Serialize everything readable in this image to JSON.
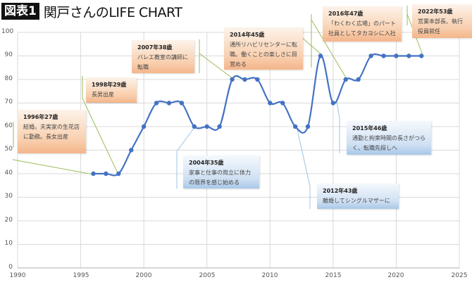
{
  "header": {
    "badge": "図表1",
    "title": "関戸さんのLIFE CHART"
  },
  "colors": {
    "line": "#4472c4",
    "grid": "#d9d9d9",
    "annotation_orange": "#f4b58a",
    "annotation_blue": "#a9c8e8",
    "leader_green": "#9bbb59"
  },
  "chart_data": {
    "type": "line",
    "title": "関戸さんのLIFE CHART",
    "xlabel": "",
    "ylabel": "",
    "xlim": [
      1990,
      2025
    ],
    "ylim": [
      0,
      100
    ],
    "x_ticks": [
      1990,
      1995,
      2000,
      2005,
      2010,
      2015,
      2020,
      2025
    ],
    "y_ticks": [
      0,
      10,
      20,
      30,
      40,
      50,
      60,
      70,
      80,
      90,
      100
    ],
    "grid": true,
    "series": [
      {
        "name": "LIFE CHART",
        "x": [
          1996,
          1997,
          1998,
          1999,
          2000,
          2001,
          2002,
          2003,
          2004,
          2005,
          2006,
          2007,
          2008,
          2009,
          2010,
          2011,
          2012,
          2013,
          2014,
          2015,
          2016,
          2017,
          2018,
          2019,
          2020,
          2021,
          2022
        ],
        "values": [
          40,
          40,
          40,
          50,
          60,
          70,
          70,
          70,
          60,
          60,
          60,
          80,
          80,
          80,
          70,
          70,
          60,
          60,
          90,
          70,
          80,
          80,
          90,
          90,
          90,
          90,
          90
        ]
      }
    ],
    "annotations": [
      {
        "year_label": "1996年27歳",
        "text": "結婚。夫実家の生花店\nに勤務。長女出産",
        "color": "orange"
      },
      {
        "year_label": "1998年29歳",
        "text": "長男出産",
        "color": "orange"
      },
      {
        "year_label": "2007年38歳",
        "text": "バレエ教室の講師に\n転職",
        "color": "orange"
      },
      {
        "year_label": "2014年45歳",
        "text": "通所リハビリセンターに転\n職。働くことの楽しさに目\n覚める",
        "color": "orange"
      },
      {
        "year_label": "2016年47歳",
        "text": "「わくわく広場」のパート\n社員としてタカヨシに入社",
        "color": "orange"
      },
      {
        "year_label": "2022年53歳",
        "text": "営業本部長、執行\n役員就任",
        "color": "orange"
      },
      {
        "year_label": "2004年35歳",
        "text": "家事と仕事の両立に体力\nの限界を感じ始める",
        "color": "blue"
      },
      {
        "year_label": "2012年43歳",
        "text": "離婚してシングルマザーに",
        "color": "blue"
      },
      {
        "year_label": "2015年46歳",
        "text": "通勤と拘束時間の長さがつら\nく、転職先探しへ",
        "color": "blue"
      }
    ]
  },
  "axis": {
    "y_labels": [
      "0",
      "10",
      "20",
      "30",
      "40",
      "50",
      "60",
      "70",
      "80",
      "90",
      "100"
    ],
    "x_labels": [
      "1990",
      "1995",
      "2000",
      "2005",
      "2010",
      "2015",
      "2020",
      "2025"
    ]
  }
}
